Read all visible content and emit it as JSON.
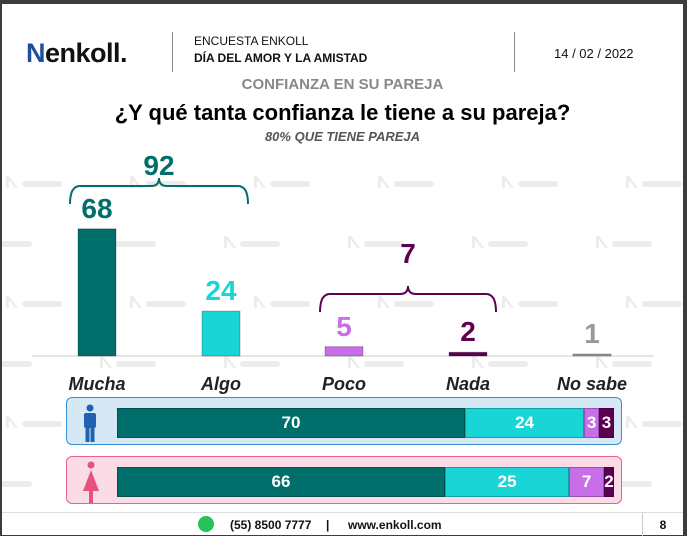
{
  "header": {
    "logo": "enkoll.",
    "line1": "ENCUESTA ENKOLL",
    "line2": "DÍA DEL AMOR Y LA AMISTAD",
    "date": "14 / 02 / 2022"
  },
  "section": "CONFIANZA EN SU PAREJA",
  "question": "¿Y qué tanta confianza le tiene a su pareja?",
  "subtitle": "80% QUE TIENE PAREJA",
  "colors": {
    "mucha": "#006e6a",
    "algo": "#1ad5d5",
    "poco": "#c86ee8",
    "nada": "#5e0051",
    "nosabe": "#999999",
    "male_bg": "#d6e8f5",
    "male_border": "#3a8fd0",
    "female_bg": "#fadbe6",
    "female_border": "#e8628e"
  },
  "chart_data": [
    {
      "type": "bar",
      "categories": [
        "Mucha",
        "Algo",
        "Poco",
        "Nada",
        "No sabe"
      ],
      "values": [
        68,
        24,
        5,
        2,
        1
      ],
      "groups": [
        {
          "label": "92",
          "members": [
            "Mucha",
            "Algo"
          ]
        },
        {
          "label": "7",
          "members": [
            "Poco",
            "Nada"
          ]
        }
      ]
    },
    {
      "type": "stacked-bar",
      "categories": [
        "Hombres",
        "Mujeres"
      ],
      "icons": [
        "male-icon",
        "female-icon"
      ],
      "series": [
        {
          "values": [
            70,
            66
          ]
        },
        {
          "values": [
            24,
            25
          ]
        },
        {
          "values": [
            3,
            7
          ]
        },
        {
          "values": [
            3,
            2
          ]
        }
      ]
    }
  ],
  "footer": {
    "phone": "(55) 8500 7777",
    "sep": "|",
    "web": "www.enkoll.com",
    "page": "8"
  }
}
